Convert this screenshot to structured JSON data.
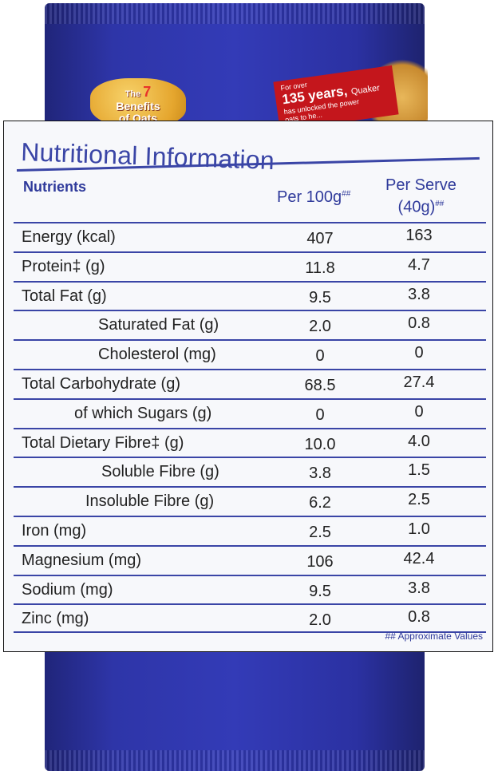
{
  "packet": {
    "badge": {
      "the": "The",
      "number": "7",
      "line2": "Benefits",
      "line3": "of Oats"
    },
    "banner": {
      "line1": "For over",
      "line2": "135 years,",
      "line2b": "Quaker",
      "line3": "has unlocked the power",
      "line4": "oats to he..."
    }
  },
  "label": {
    "title": "Nutritional Information",
    "headers": {
      "nutrients": "Nutrients",
      "per100": "Per 100g",
      "per100_mark": "##",
      "perserve_line1": "Per Serve",
      "perserve_line2": "(40g)",
      "perserve_mark": "##"
    },
    "rows": [
      {
        "name": "Energy (kcal)",
        "per100": "407",
        "perserve": "163"
      },
      {
        "name": "Protein‡ (g)",
        "per100": "11.8",
        "perserve": "4.7"
      },
      {
        "name": "Total Fat (g)",
        "per100": "9.5",
        "perserve": "3.8"
      },
      {
        "name": "Saturated Fat (g)",
        "per100": "2.0",
        "perserve": "0.8"
      },
      {
        "name": "Cholesterol (mg)",
        "per100": "0",
        "perserve": "0"
      },
      {
        "name": "Total Carbohydrate (g)",
        "per100": "68.5",
        "perserve": "27.4"
      },
      {
        "name": "of which Sugars (g)",
        "per100": "0",
        "perserve": "0"
      },
      {
        "name": "Total Dietary Fibre‡ (g)",
        "per100": "10.0",
        "perserve": "4.0"
      },
      {
        "name": "Soluble Fibre (g)",
        "per100": "3.8",
        "perserve": "1.5"
      },
      {
        "name": "Insoluble Fibre (g)",
        "per100": "6.2",
        "perserve": "2.5"
      },
      {
        "name": "Iron (mg)",
        "per100": "2.5",
        "perserve": "1.0"
      },
      {
        "name": "Magnesium (mg)",
        "per100": "106",
        "perserve": "42.4"
      },
      {
        "name": "Sodium (mg)",
        "per100": "9.5",
        "perserve": "3.8"
      },
      {
        "name": "Zinc (mg)",
        "per100": "2.0",
        "perserve": "0.8"
      }
    ],
    "footnote": "## Approximate Values"
  },
  "colors": {
    "ink_blue": "#3a45a6",
    "packet_blue": "#2e35a8",
    "banner_red": "#c4161c"
  }
}
